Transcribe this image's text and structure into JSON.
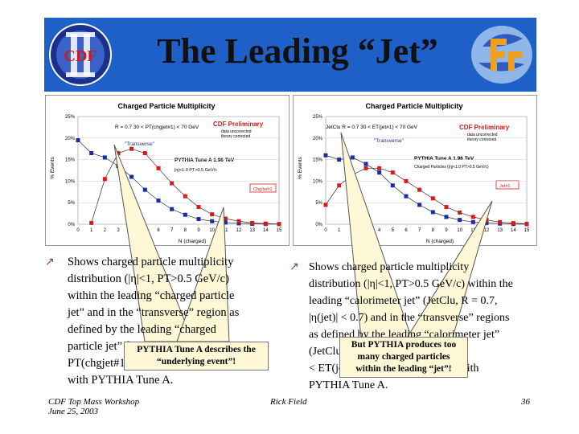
{
  "slide": {
    "title": "The Leading “Jet”",
    "logo_left_text": "CDF",
    "page_number": "36",
    "footer_left_line1": "CDF Top Mass Workshop",
    "footer_left_line2": "June 25, 2003",
    "footer_center": "Rick Field"
  },
  "left_chart": {
    "title": "Charged Particle Multiplicity",
    "annotation": "R = 0.7 30 < PT(chgjet#1) < 70 GeV",
    "preliminary": "CDF Preliminary",
    "prelim_sub1": "data uncorrected",
    "prelim_sub2": "theory corrected",
    "transverse_label": "\"Transverse\"",
    "tune": "PYTHIA Tune A 1.96 TeV",
    "cuts": "|η|<1.0 PT>0.5 GeV/c",
    "legend_label": "ChgJet#1",
    "xlabel": "N (charged)",
    "ylabel": "% Events",
    "x_ticks": [
      "0",
      "1",
      "2",
      "3",
      "4",
      "5",
      "6",
      "7",
      "8",
      "9",
      "10",
      "11",
      "12",
      "13",
      "14",
      "15"
    ],
    "y_ticks": [
      "0%",
      "5%",
      "10%",
      "15%",
      "20%",
      "25%"
    ]
  },
  "right_chart": {
    "title": "Charged Particle Multiplicity",
    "annotation": "JetClu R = 0.7 30 < ET(jet#1) < 70 GeV",
    "preliminary": "CDF Preliminary",
    "prelim_sub1": "data uncorrected",
    "prelim_sub2": "theory corrected",
    "transverse_label": "\"Transverse\"",
    "tune": "PYTHIA Tune A 1.96 TeV",
    "cuts": "Charged Particles (|η|<1.0 PT>0.5 GeV/c)",
    "legend_label": "Jet#1",
    "xlabel": "N (charged)",
    "ylabel": "% Events",
    "x_ticks": [
      "0",
      "1",
      "2",
      "3",
      "4",
      "5",
      "6",
      "7",
      "8",
      "9",
      "10",
      "11",
      "12",
      "13",
      "14",
      "15"
    ],
    "y_ticks": [
      "0%",
      "5%",
      "10%",
      "15%",
      "20%",
      "25%"
    ]
  },
  "chart_data": [
    {
      "type": "scatter",
      "title": "Charged Particle Multiplicity",
      "xlabel": "N (charged)",
      "ylabel": "% Events",
      "xlim": [
        0,
        15
      ],
      "ylim": [
        0,
        25
      ],
      "series": [
        {
          "name": "\"Transverse\"",
          "x": [
            0,
            1,
            2,
            3,
            4,
            5,
            6,
            7,
            8,
            9,
            10,
            11,
            12,
            13,
            14,
            15
          ],
          "y": [
            19.5,
            16.5,
            15.5,
            13.5,
            11.0,
            8.0,
            5.5,
            3.5,
            2.2,
            1.2,
            0.7,
            0.4,
            0.2,
            0.1,
            0.05,
            0.02
          ]
        },
        {
          "name": "ChgJet#1",
          "x": [
            1,
            2,
            3,
            4,
            5,
            6,
            7,
            8,
            9,
            10,
            11,
            12,
            13,
            14,
            15
          ],
          "y": [
            0.3,
            10.5,
            16.5,
            17.5,
            16.5,
            13.0,
            9.5,
            6.5,
            4.0,
            2.3,
            1.3,
            0.7,
            0.3,
            0.15,
            0.05
          ]
        }
      ]
    },
    {
      "type": "scatter",
      "title": "Charged Particle Multiplicity",
      "xlabel": "N (charged)",
      "ylabel": "% Events",
      "xlim": [
        0,
        15
      ],
      "ylim": [
        0,
        25
      ],
      "series": [
        {
          "name": "\"Transverse\"",
          "x": [
            0,
            1,
            2,
            3,
            4,
            5,
            6,
            7,
            8,
            9,
            10,
            11,
            12,
            13,
            14,
            15
          ],
          "y": [
            16.0,
            15.0,
            15.5,
            14.0,
            12.0,
            9.0,
            6.5,
            4.5,
            2.8,
            1.7,
            1.0,
            0.5,
            0.3,
            0.15,
            0.05,
            0.02
          ]
        },
        {
          "name": "Jet#1",
          "x": [
            0,
            1,
            2,
            3,
            4,
            5,
            6,
            7,
            8,
            9,
            10,
            11,
            12,
            13,
            14,
            15
          ],
          "y": [
            4.5,
            9.0,
            11.5,
            13.0,
            13.0,
            12.0,
            10.0,
            8.0,
            6.0,
            4.0,
            2.7,
            1.7,
            1.0,
            0.5,
            0.25,
            0.1
          ]
        }
      ]
    }
  ],
  "left_text": {
    "l1": "Shows charged particle multiplicity",
    "l2": "distribution (|η|<1, PT>0.5 GeV/c)",
    "l3": "within the leading “charged particle",
    "l4": "jet” and in the “transverse” region as",
    "l5": "defined by the leading “charged",
    "l6": "particle jet” for the range 30 <",
    "l7": "PT(chgjet#1) < 70 GeV/c compared",
    "l8": "with PYTHIA Tune A."
  },
  "right_text": {
    "l1": "Shows charged particle multiplicity",
    "l2": "distribution (|η|<1, PT>0.5 GeV/c) within the",
    "l3": "leading “calorimeter jet” (JetClu, R = 0.7,",
    "l4": "|η(jet)| < 0.7) and in the “transverse” regions",
    "l5": "as defined by the leading “calorimeter jet”",
    "l6": "(JetClu, R = 0.7) for the range 30",
    "l7": "< ET(jet#1) < 70 GeV compared with",
    "l8": "PYTHIA Tune A."
  },
  "callouts": {
    "left_1": "PYTHIA Tune A describes the",
    "left_2": "“underlying event”!",
    "right_1": "But PYTHIA produces too",
    "right_2": "many charged particles",
    "right_3": "within the leading “jet”!"
  },
  "colors": {
    "title_bar": "#1f5fc8",
    "transverse": "#1a2aa8",
    "jet": "#d81a1a",
    "pythia_line": "#333333",
    "callout_fill": "#fff8d6"
  }
}
